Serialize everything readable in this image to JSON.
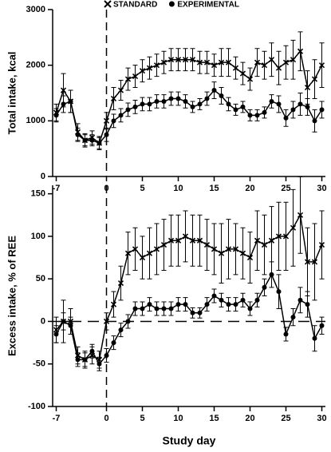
{
  "chart_data": [
    {
      "type": "line",
      "ylabel": "Total intake, kcal",
      "x": [
        -7,
        -6,
        -5,
        -4,
        -3,
        -2,
        -1,
        0,
        1,
        2,
        3,
        4,
        5,
        6,
        7,
        8,
        9,
        10,
        11,
        12,
        13,
        14,
        15,
        16,
        17,
        18,
        19,
        20,
        21,
        22,
        23,
        24,
        25,
        26,
        27,
        28,
        29,
        30
      ],
      "xlim": [
        -7.5,
        30.5
      ],
      "xticks": [
        -7,
        0,
        5,
        10,
        15,
        20,
        25,
        30
      ],
      "ylim": [
        0,
        3000
      ],
      "yticks": [
        0,
        1000,
        2000,
        3000
      ],
      "vline": 0,
      "legend": "top",
      "series": [
        {
          "name": "STANDARD",
          "marker": "x",
          "color": "#000000",
          "values": [
            1150,
            1550,
            1350,
            800,
            650,
            700,
            600,
            1000,
            1400,
            1550,
            1750,
            1800,
            1900,
            1950,
            2000,
            2050,
            2100,
            2100,
            2100,
            2100,
            2050,
            2050,
            2000,
            2050,
            2050,
            1950,
            1850,
            1750,
            2050,
            2000,
            2100,
            1950,
            2050,
            2100,
            2250,
            1600,
            1750,
            2000
          ],
          "errors": [
            150,
            300,
            200,
            150,
            120,
            120,
            120,
            150,
            200,
            180,
            200,
            200,
            200,
            200,
            200,
            200,
            200,
            200,
            200,
            200,
            200,
            200,
            200,
            250,
            250,
            200,
            200,
            200,
            250,
            250,
            300,
            300,
            300,
            350,
            350,
            300,
            350,
            400
          ]
        },
        {
          "name": "EXPERIMENTAL",
          "marker": "circle",
          "color": "#000000",
          "values": [
            1100,
            1300,
            1350,
            750,
            650,
            650,
            600,
            750,
            1000,
            1100,
            1200,
            1250,
            1300,
            1300,
            1350,
            1350,
            1400,
            1400,
            1350,
            1250,
            1300,
            1400,
            1550,
            1450,
            1300,
            1200,
            1250,
            1100,
            1100,
            1150,
            1350,
            1300,
            1050,
            1200,
            1300,
            1250,
            1000,
            1200
          ],
          "errors": [
            120,
            150,
            200,
            120,
            100,
            100,
            100,
            120,
            120,
            120,
            120,
            120,
            120,
            120,
            120,
            120,
            120,
            120,
            120,
            100,
            100,
            120,
            150,
            150,
            120,
            100,
            100,
            100,
            100,
            100,
            120,
            150,
            150,
            150,
            200,
            150,
            200,
            150
          ]
        }
      ]
    },
    {
      "type": "line",
      "ylabel": "Excess intake, % of REE",
      "xlabel": "Study day",
      "x": [
        -7,
        -6,
        -5,
        -4,
        -3,
        -2,
        -1,
        0,
        1,
        2,
        3,
        4,
        5,
        6,
        7,
        8,
        9,
        10,
        11,
        12,
        13,
        14,
        15,
        16,
        17,
        18,
        19,
        20,
        21,
        22,
        23,
        24,
        25,
        26,
        27,
        28,
        29,
        30
      ],
      "xlim": [
        -7.5,
        30.5
      ],
      "xticks": [
        -7,
        0,
        5,
        10,
        15,
        20,
        25,
        30
      ],
      "ylim": [
        -100,
        160
      ],
      "yticks": [
        -100,
        -50,
        0,
        50,
        100,
        150
      ],
      "vline": 0,
      "hline": 0,
      "series": [
        {
          "marker": "x",
          "color": "#000000",
          "values": [
            -10,
            0,
            0,
            -40,
            -45,
            -40,
            -45,
            0,
            20,
            45,
            80,
            85,
            75,
            80,
            85,
            90,
            95,
            95,
            100,
            95,
            95,
            90,
            85,
            80,
            85,
            85,
            80,
            75,
            95,
            90,
            95,
            100,
            100,
            110,
            125,
            70,
            70,
            90
          ],
          "errors": [
            15,
            25,
            15,
            10,
            10,
            10,
            10,
            10,
            15,
            20,
            25,
            25,
            25,
            30,
            30,
            30,
            30,
            30,
            30,
            30,
            30,
            30,
            30,
            35,
            35,
            30,
            30,
            30,
            35,
            35,
            40,
            40,
            40,
            45,
            45,
            40,
            45,
            40
          ]
        },
        {
          "marker": "circle",
          "color": "#000000",
          "values": [
            -15,
            0,
            -5,
            -45,
            -45,
            -35,
            -50,
            -40,
            -25,
            -10,
            0,
            15,
            15,
            20,
            15,
            15,
            15,
            20,
            20,
            10,
            10,
            20,
            30,
            25,
            20,
            20,
            25,
            15,
            25,
            40,
            55,
            35,
            -15,
            5,
            25,
            20,
            -20,
            -5
          ],
          "errors": [
            10,
            10,
            10,
            8,
            8,
            8,
            8,
            8,
            8,
            8,
            8,
            8,
            8,
            8,
            8,
            8,
            8,
            8,
            8,
            6,
            6,
            8,
            8,
            8,
            8,
            8,
            8,
            8,
            8,
            10,
            15,
            20,
            8,
            10,
            15,
            15,
            15,
            10
          ]
        }
      ]
    }
  ]
}
